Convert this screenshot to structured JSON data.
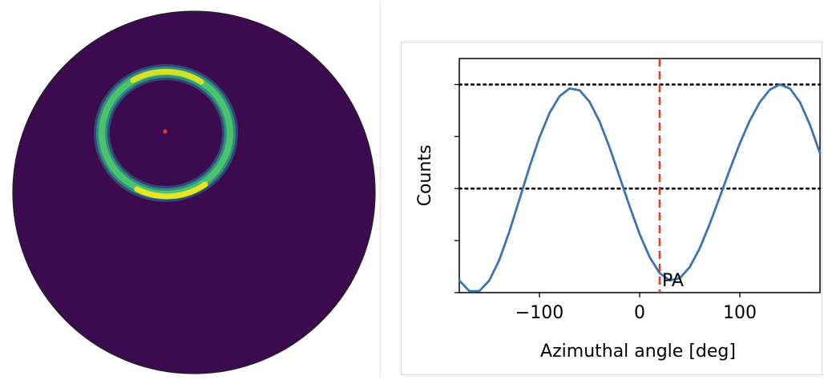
{
  "left_image": {
    "description_colors": {
      "background": "#ffffff",
      "disk": "#3c0a4e",
      "ring_outer": "#2a8a8c",
      "ring_mid": "#3fbc73",
      "ring_peak": "#e8e421",
      "center_marker": "#e0342a"
    },
    "icons": {
      "center_marker": "red-dot-icon"
    }
  },
  "chart_data": {
    "type": "line",
    "xlabel": "Azimuthal angle [deg]",
    "ylabel": "Counts",
    "xlim": [
      -180,
      180
    ],
    "ylim": [
      -1.0,
      1.25
    ],
    "xticks": [
      -100,
      0,
      100
    ],
    "xtick_labels": [
      "−100",
      "0",
      "100"
    ],
    "yticks": [
      -1.0,
      -0.5,
      0.0,
      0.5,
      1.0
    ],
    "ytick_labels": [
      "",
      "",
      "",
      "",
      ""
    ],
    "series": [
      {
        "x": [
          -180,
          -170,
          -160,
          -150,
          -140,
          -130,
          -120,
          -110,
          -100,
          -90,
          -80,
          -70,
          -60,
          -50,
          -40,
          -30,
          -20,
          -10,
          0,
          10,
          20,
          30,
          40,
          50,
          60,
          70,
          80,
          90,
          100,
          110,
          120,
          130,
          140,
          150,
          160,
          170,
          180
        ],
        "y": [
          -0.883,
          -0.985,
          -0.985,
          -0.883,
          -0.684,
          -0.413,
          -0.105,
          0.205,
          0.491,
          0.725,
          0.887,
          0.962,
          0.945,
          0.835,
          0.645,
          0.395,
          0.114,
          -0.171,
          -0.437,
          -0.659,
          -0.813,
          -0.883,
          -0.862,
          -0.755,
          -0.574,
          -0.339,
          -0.08,
          0.183,
          0.434,
          0.655,
          0.831,
          0.951,
          1.0,
          0.962,
          0.831,
          0.613,
          0.34
        ],
        "color": "#3a75b0"
      }
    ],
    "hlines": [
      {
        "y": 1.0,
        "style": "dotted",
        "color": "#000000"
      },
      {
        "y": 0.0,
        "style": "dotted",
        "color": "#000000"
      }
    ],
    "vline": {
      "x": 20,
      "style": "dashed",
      "color": "#e03c2a",
      "label": "PA"
    },
    "grid": false,
    "legend": "none"
  }
}
